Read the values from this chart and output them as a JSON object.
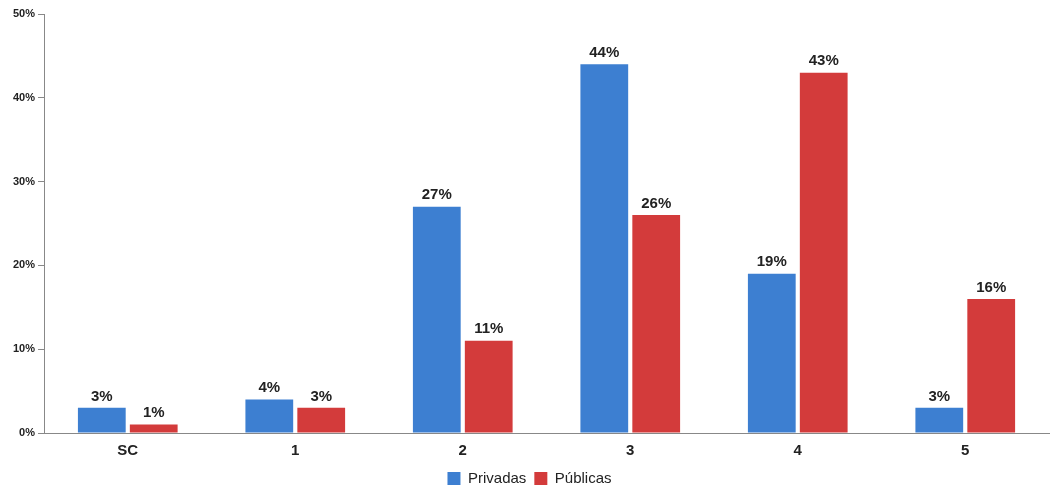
{
  "chart_data": {
    "type": "bar",
    "categories": [
      "SC",
      "1",
      "2",
      "3",
      "4",
      "5"
    ],
    "series": [
      {
        "name": "Privadas",
        "color": "#3d7fd1",
        "values": [
          3,
          4,
          27,
          44,
          19,
          3
        ],
        "value_labels": [
          "3%",
          "4%",
          "27%",
          "44%",
          "19%",
          "3%"
        ]
      },
      {
        "name": "Públicas",
        "color": "#d33b3b",
        "values": [
          1,
          3,
          11,
          26,
          43,
          16
        ],
        "value_labels": [
          "1%",
          "3%",
          "11%",
          "26%",
          "43%",
          "16%"
        ]
      }
    ],
    "ylim": [
      0,
      50
    ],
    "yticks": [
      {
        "value": 0,
        "label": "0%"
      },
      {
        "value": 10,
        "label": "10%"
      },
      {
        "value": 20,
        "label": "20%"
      },
      {
        "value": 30,
        "label": "30%"
      },
      {
        "value": 40,
        "label": "40%"
      },
      {
        "value": 50,
        "label": "50%"
      }
    ],
    "grid": false,
    "legend": "bottom"
  }
}
